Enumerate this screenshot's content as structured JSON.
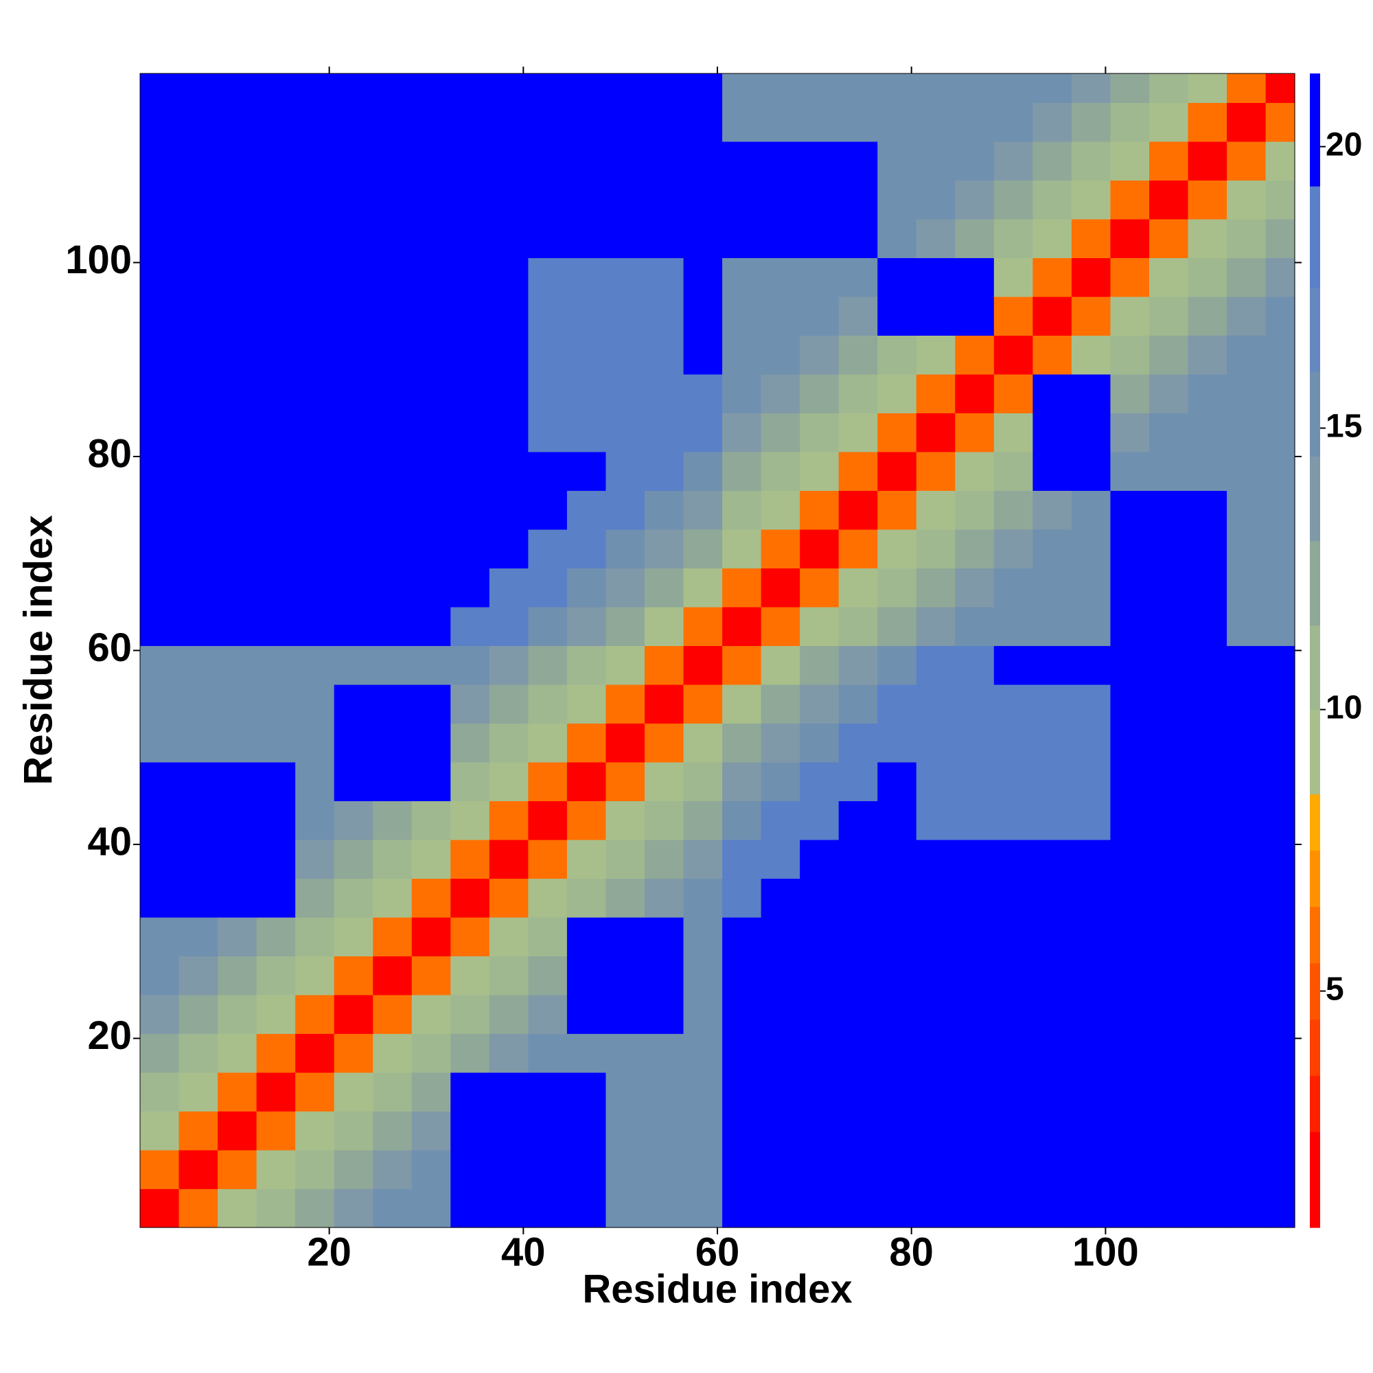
{
  "chart_data": {
    "type": "heatmap",
    "xlabel": "Residue index",
    "ylabel": "Residue index",
    "xlim": [
      0.5,
      119.5
    ],
    "ylim": [
      0.5,
      119.5
    ],
    "xticks": [
      20,
      40,
      60,
      80,
      100
    ],
    "yticks": [
      20,
      40,
      60,
      80,
      100
    ],
    "xbins": [
      0.5,
      4.5,
      8.5,
      12.5,
      16.5,
      20.5,
      24.5,
      28.5,
      32.5,
      36.5,
      40.5,
      44.5,
      48.5,
      52.5,
      56.5,
      60.5,
      64.5,
      68.5,
      72.5,
      76.5,
      80.5,
      84.5,
      88.5,
      92.5,
      96.5,
      100.5,
      104.5,
      108.5,
      112.5,
      116.5,
      119.5
    ],
    "ybins": [
      0.5,
      4.5,
      8.5,
      12.5,
      16.5,
      20.5,
      24.5,
      28.5,
      32.5,
      36.5,
      40.5,
      44.5,
      48.5,
      52.5,
      56.5,
      60.5,
      64.5,
      68.5,
      72.5,
      76.5,
      80.5,
      84.5,
      88.5,
      92.5,
      96.5,
      100.5,
      104.5,
      108.5,
      112.5,
      116.5,
      119.5
    ],
    "clim": [
      0.8,
      21.3
    ],
    "cticks": [
      5,
      10,
      15,
      20
    ],
    "colorscale": [
      {
        "max": 2.5,
        "color": "#ff0000"
      },
      {
        "max": 3.5,
        "color": "#ff2000"
      },
      {
        "max": 4.5,
        "color": "#ff4000"
      },
      {
        "max": 5.5,
        "color": "#ff5500"
      },
      {
        "max": 6.5,
        "color": "#ff7000"
      },
      {
        "max": 7.5,
        "color": "#ff9000"
      },
      {
        "max": 8.5,
        "color": "#ffaa00"
      },
      {
        "max": 10,
        "color": "#a8bf8c"
      },
      {
        "max": 11.5,
        "color": "#9fb890"
      },
      {
        "max": 13,
        "color": "#90a898"
      },
      {
        "max": 14.5,
        "color": "#8099a8"
      },
      {
        "max": 16,
        "color": "#7090b0"
      },
      {
        "max": 17.5,
        "color": "#6688c0"
      },
      {
        "max": 19.3,
        "color": "#5a80c8"
      },
      {
        "max": 21.3,
        "color": "#0000ff"
      }
    ],
    "z": [
      [
        2,
        6,
        9,
        11,
        13,
        14,
        16,
        16,
        21,
        21,
        21,
        21,
        16,
        16,
        16,
        21,
        21,
        21,
        21,
        21,
        21,
        21,
        21,
        21,
        21,
        21,
        21,
        21,
        21,
        21
      ],
      [
        6,
        2,
        6,
        9,
        11,
        13,
        14,
        16,
        21,
        21,
        21,
        21,
        16,
        16,
        16,
        21,
        21,
        21,
        21,
        21,
        21,
        21,
        21,
        21,
        21,
        21,
        21,
        21,
        21,
        21
      ],
      [
        9,
        6,
        2,
        6,
        9,
        11,
        13,
        14,
        21,
        21,
        21,
        21,
        16,
        16,
        16,
        21,
        21,
        21,
        21,
        21,
        21,
        21,
        21,
        21,
        21,
        21,
        21,
        21,
        21,
        21
      ],
      [
        11,
        9,
        6,
        2,
        6,
        9,
        11,
        13,
        21,
        21,
        21,
        21,
        16,
        16,
        16,
        21,
        21,
        21,
        21,
        21,
        21,
        21,
        21,
        21,
        21,
        21,
        21,
        21,
        21,
        21
      ],
      [
        13,
        11,
        9,
        6,
        2,
        6,
        9,
        11,
        13,
        14,
        16,
        16,
        16,
        16,
        16,
        21,
        21,
        21,
        21,
        21,
        21,
        21,
        21,
        21,
        21,
        21,
        21,
        21,
        21,
        21
      ],
      [
        14,
        13,
        11,
        9,
        6,
        2,
        6,
        9,
        11,
        13,
        14,
        21,
        21,
        21,
        16,
        21,
        21,
        21,
        21,
        21,
        21,
        21,
        21,
        21,
        21,
        21,
        21,
        21,
        21,
        21
      ],
      [
        16,
        14,
        13,
        11,
        9,
        6,
        2,
        6,
        9,
        11,
        13,
        21,
        21,
        21,
        16,
        21,
        21,
        21,
        21,
        21,
        21,
        21,
        21,
        21,
        21,
        21,
        21,
        21,
        21,
        21
      ],
      [
        16,
        16,
        14,
        13,
        11,
        9,
        6,
        2,
        6,
        9,
        11,
        21,
        21,
        21,
        16,
        21,
        21,
        21,
        21,
        21,
        21,
        21,
        21,
        21,
        21,
        21,
        21,
        21,
        21,
        21
      ],
      [
        21,
        21,
        21,
        21,
        13,
        11,
        9,
        6,
        2,
        6,
        9,
        11,
        13,
        14,
        16,
        18,
        21,
        21,
        21,
        21,
        21,
        21,
        21,
        21,
        21,
        21,
        21,
        21,
        21,
        21
      ],
      [
        21,
        21,
        21,
        21,
        14,
        13,
        11,
        9,
        6,
        2,
        6,
        9,
        11,
        13,
        14,
        18,
        18,
        21,
        21,
        21,
        21,
        21,
        21,
        21,
        21,
        21,
        21,
        21,
        21,
        21
      ],
      [
        21,
        21,
        21,
        21,
        16,
        14,
        13,
        11,
        9,
        6,
        2,
        6,
        9,
        11,
        13,
        16,
        18,
        18,
        21,
        21,
        18,
        18,
        18,
        18,
        18,
        21,
        21,
        21,
        21,
        21
      ],
      [
        21,
        21,
        21,
        21,
        16,
        21,
        21,
        21,
        11,
        9,
        6,
        2,
        6,
        9,
        11,
        14,
        16,
        18,
        18,
        21,
        18,
        18,
        18,
        18,
        18,
        21,
        21,
        21,
        21,
        21
      ],
      [
        16,
        16,
        16,
        16,
        16,
        21,
        21,
        21,
        13,
        11,
        9,
        6,
        2,
        6,
        9,
        12,
        14,
        16,
        18,
        18,
        18,
        18,
        18,
        18,
        18,
        21,
        21,
        21,
        21,
        21
      ],
      [
        16,
        16,
        16,
        16,
        16,
        21,
        21,
        21,
        14,
        13,
        11,
        9,
        6,
        2,
        6,
        9,
        12,
        14,
        16,
        18,
        18,
        18,
        18,
        18,
        18,
        21,
        21,
        21,
        21,
        21
      ],
      [
        16,
        16,
        16,
        16,
        16,
        16,
        16,
        16,
        16,
        14,
        13,
        11,
        9,
        6,
        2,
        6,
        9,
        12,
        14,
        16,
        18,
        18,
        21,
        21,
        21,
        21,
        21,
        21,
        21,
        21
      ],
      [
        21,
        21,
        21,
        21,
        21,
        21,
        21,
        21,
        18,
        18,
        16,
        14,
        12,
        9,
        6,
        2,
        6,
        9,
        11,
        13,
        14,
        16,
        16,
        16,
        16,
        21,
        21,
        21,
        16,
        16
      ],
      [
        21,
        21,
        21,
        21,
        21,
        21,
        21,
        21,
        21,
        18,
        18,
        16,
        14,
        12,
        9,
        6,
        2,
        6,
        9,
        11,
        13,
        14,
        16,
        16,
        16,
        21,
        21,
        21,
        16,
        16
      ],
      [
        21,
        21,
        21,
        21,
        21,
        21,
        21,
        21,
        21,
        21,
        18,
        18,
        16,
        14,
        12,
        9,
        6,
        2,
        6,
        9,
        11,
        13,
        14,
        16,
        16,
        21,
        21,
        21,
        16,
        16
      ],
      [
        21,
        21,
        21,
        21,
        21,
        21,
        21,
        21,
        21,
        21,
        21,
        18,
        18,
        16,
        14,
        11,
        9,
        6,
        2,
        6,
        9,
        11,
        13,
        14,
        16,
        21,
        21,
        21,
        16,
        16
      ],
      [
        21,
        21,
        21,
        21,
        21,
        21,
        21,
        21,
        21,
        21,
        21,
        21,
        18,
        18,
        16,
        13,
        11,
        9,
        6,
        2,
        6,
        9,
        11,
        21,
        21,
        16,
        16,
        16,
        16,
        16
      ],
      [
        21,
        21,
        21,
        21,
        21,
        21,
        21,
        21,
        21,
        21,
        18,
        18,
        18,
        18,
        18,
        14,
        13,
        11,
        9,
        6,
        2,
        6,
        9,
        21,
        21,
        14,
        16,
        16,
        16,
        16
      ],
      [
        21,
        21,
        21,
        21,
        21,
        21,
        21,
        21,
        21,
        21,
        18,
        18,
        18,
        18,
        18,
        16,
        14,
        13,
        11,
        9,
        6,
        2,
        6,
        21,
        21,
        13,
        14,
        16,
        16,
        16
      ],
      [
        21,
        21,
        21,
        21,
        21,
        21,
        21,
        21,
        21,
        21,
        18,
        18,
        18,
        18,
        21,
        16,
        16,
        14,
        13,
        11,
        9,
        6,
        2,
        6,
        9,
        11,
        13,
        14,
        16,
        16
      ],
      [
        21,
        21,
        21,
        21,
        21,
        21,
        21,
        21,
        21,
        21,
        18,
        18,
        18,
        18,
        21,
        16,
        16,
        16,
        14,
        21,
        21,
        21,
        6,
        2,
        6,
        9,
        11,
        13,
        14,
        16
      ],
      [
        21,
        21,
        21,
        21,
        21,
        21,
        21,
        21,
        21,
        21,
        18,
        18,
        18,
        18,
        21,
        16,
        16,
        16,
        16,
        21,
        21,
        21,
        9,
        6,
        2,
        6,
        9,
        11,
        13,
        14
      ],
      [
        21,
        21,
        21,
        21,
        21,
        21,
        21,
        21,
        21,
        21,
        21,
        21,
        21,
        21,
        21,
        21,
        21,
        21,
        21,
        16,
        14,
        13,
        11,
        9,
        6,
        2,
        6,
        9,
        11,
        13
      ],
      [
        21,
        21,
        21,
        21,
        21,
        21,
        21,
        21,
        21,
        21,
        21,
        21,
        21,
        21,
        21,
        21,
        21,
        21,
        21,
        16,
        16,
        14,
        13,
        11,
        9,
        6,
        2,
        6,
        9,
        11
      ],
      [
        21,
        21,
        21,
        21,
        21,
        21,
        21,
        21,
        21,
        21,
        21,
        21,
        21,
        21,
        21,
        21,
        21,
        21,
        21,
        16,
        16,
        16,
        14,
        13,
        11,
        9,
        6,
        2,
        6,
        9
      ],
      [
        21,
        21,
        21,
        21,
        21,
        21,
        21,
        21,
        21,
        21,
        21,
        21,
        21,
        21,
        21,
        16,
        16,
        16,
        16,
        16,
        16,
        16,
        16,
        14,
        13,
        11,
        9,
        6,
        2,
        6
      ],
      [
        21,
        21,
        21,
        21,
        21,
        21,
        21,
        21,
        21,
        21,
        21,
        21,
        21,
        21,
        21,
        16,
        16,
        16,
        16,
        16,
        16,
        16,
        16,
        16,
        14,
        13,
        11,
        9,
        6,
        2
      ]
    ]
  }
}
